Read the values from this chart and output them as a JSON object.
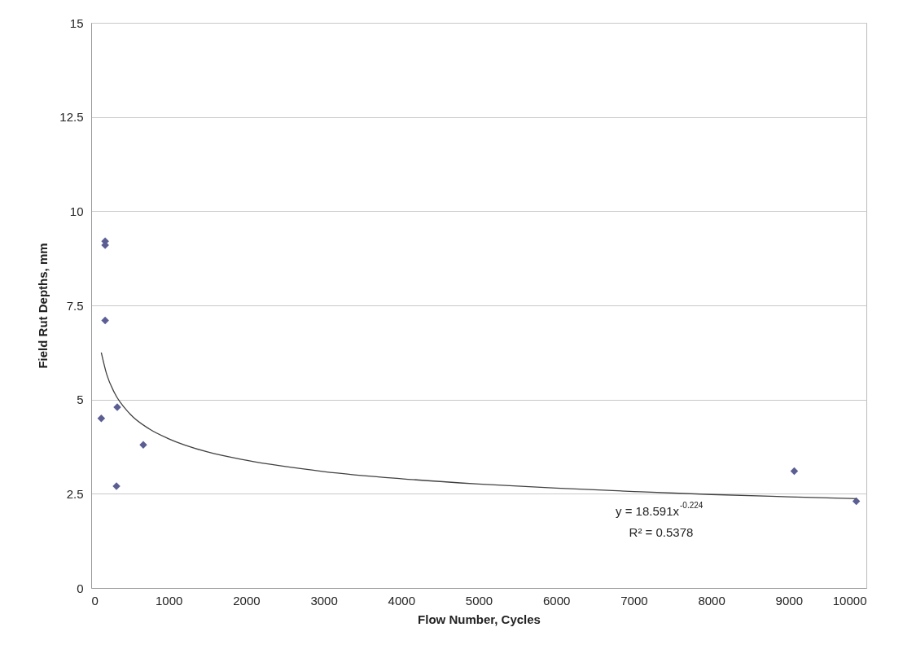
{
  "chart_data": {
    "type": "scatter",
    "xlabel": "Flow Number, Cycles",
    "ylabel": "Field Rut Depths, mm",
    "xlim": [
      0,
      10000
    ],
    "xticks": [
      0,
      1000,
      2000,
      3000,
      4000,
      5000,
      6000,
      7000,
      8000,
      9000,
      10000
    ],
    "ylim": [
      0,
      15
    ],
    "yticks": [
      0,
      2.5,
      5,
      7.5,
      10,
      12.5,
      15
    ],
    "grid": "y",
    "marker": "diamond",
    "series": [
      {
        "color": "#5b5e93",
        "x": [
          180,
          180,
          180,
          130,
          336,
          672,
          326,
          9070,
          9870
        ],
        "values": [
          9.2,
          9.1,
          7.1,
          4.5,
          4.8,
          3.8,
          2.7,
          3.1,
          2.3
        ]
      },
      {
        "type": "line",
        "color": "#404040",
        "line_style": "solid",
        "marker": "none",
        "x": [
          130,
          200,
          300,
          500,
          750,
          1000,
          1500,
          2000,
          3000,
          4000,
          5000,
          6000,
          7000,
          8000,
          9000,
          9870
        ],
        "values": [
          6.25,
          5.67,
          5.18,
          4.62,
          4.22,
          3.96,
          3.61,
          3.39,
          3.09,
          2.9,
          2.76,
          2.65,
          2.56,
          2.48,
          2.42,
          2.37
        ]
      }
    ],
    "annotations": [
      "y = 18.591x$^{-0.224}$",
      "R² = 0.5378"
    ]
  }
}
